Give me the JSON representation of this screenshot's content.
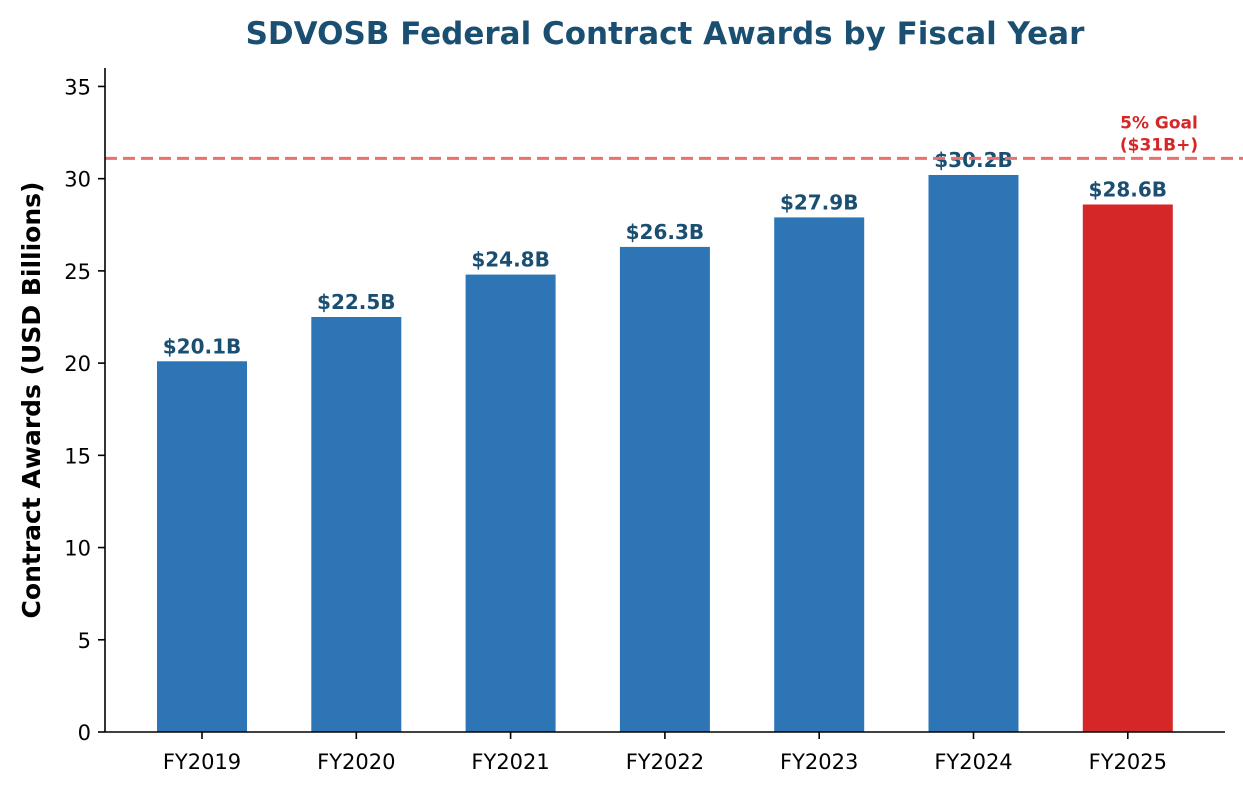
{
  "chart_data": {
    "type": "bar",
    "title": "SDVOSB Federal Contract Awards by Fiscal Year",
    "xlabel": "",
    "ylabel": "Contract Awards (USD Billions)",
    "categories": [
      "FY2019",
      "FY2020",
      "FY2021",
      "FY2022",
      "FY2023",
      "FY2024",
      "FY2025"
    ],
    "values": [
      20.1,
      22.5,
      24.8,
      26.3,
      27.9,
      30.2,
      28.6
    ],
    "data_labels": [
      "$20.1B",
      "$22.5B",
      "$24.8B",
      "$26.3B",
      "$27.9B",
      "$30.2B",
      "$28.6B"
    ],
    "ylim": [
      0,
      36
    ],
    "yticks": [
      0,
      5,
      10,
      15,
      20,
      25,
      30,
      35
    ],
    "grid": false,
    "reference_line": {
      "value": 31.1,
      "label_line1": "5% Goal",
      "label_line2": "($31B+)",
      "style": "dashed"
    },
    "colors": {
      "bar": "#2e75b6",
      "highlight_bar": "#d62728",
      "goal": "#d62728",
      "goal_line": "#e8706f",
      "title": "#1b4f72",
      "data_label": "#1b4f72",
      "axis": "#000000"
    },
    "highlight_index": 6
  }
}
